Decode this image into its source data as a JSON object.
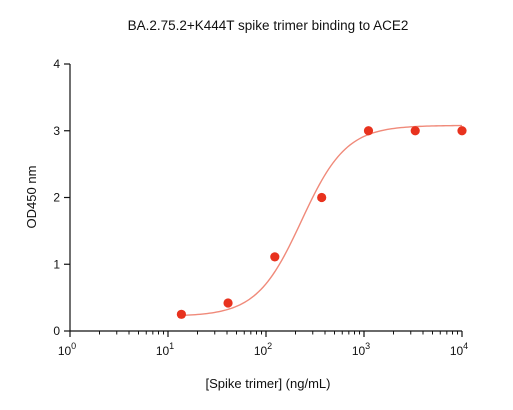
{
  "chart_data": {
    "type": "scatter",
    "title": "BA.2.75.2+K444T spike trimer binding to ACE2",
    "xlabel": "[Spike trimer]  (ng/mL)",
    "ylabel": "OD450 nm",
    "x_scale": "log",
    "xlim": [
      1,
      10000
    ],
    "ylim": [
      0,
      4
    ],
    "x_ticks": [
      {
        "value": 1,
        "base": "10",
        "exp": "0"
      },
      {
        "value": 10,
        "base": "10",
        "exp": "1"
      },
      {
        "value": 100,
        "base": "10",
        "exp": "2"
      },
      {
        "value": 1000,
        "base": "10",
        "exp": "3"
      },
      {
        "value": 10000,
        "base": "10",
        "exp": "4"
      }
    ],
    "y_ticks": [
      "0",
      "1",
      "2",
      "3",
      "4"
    ],
    "grid": false,
    "series": [
      {
        "points": [
          {
            "x": 13.7,
            "y": 0.25
          },
          {
            "x": 41,
            "y": 0.42
          },
          {
            "x": 123,
            "y": 1.11
          },
          {
            "x": 370,
            "y": 2.0
          },
          {
            "x": 1111,
            "y": 3.0
          },
          {
            "x": 3333,
            "y": 3.0
          },
          {
            "x": 10000,
            "y": 3.0
          }
        ],
        "fit": {
          "model": "4PL",
          "bottom": 0.22,
          "top": 3.08,
          "ec50": 230,
          "hill": 1.9
        }
      }
    ],
    "colors": {
      "points": "#e8321e",
      "curve": "#f08a7a",
      "axis": "#111111"
    }
  }
}
